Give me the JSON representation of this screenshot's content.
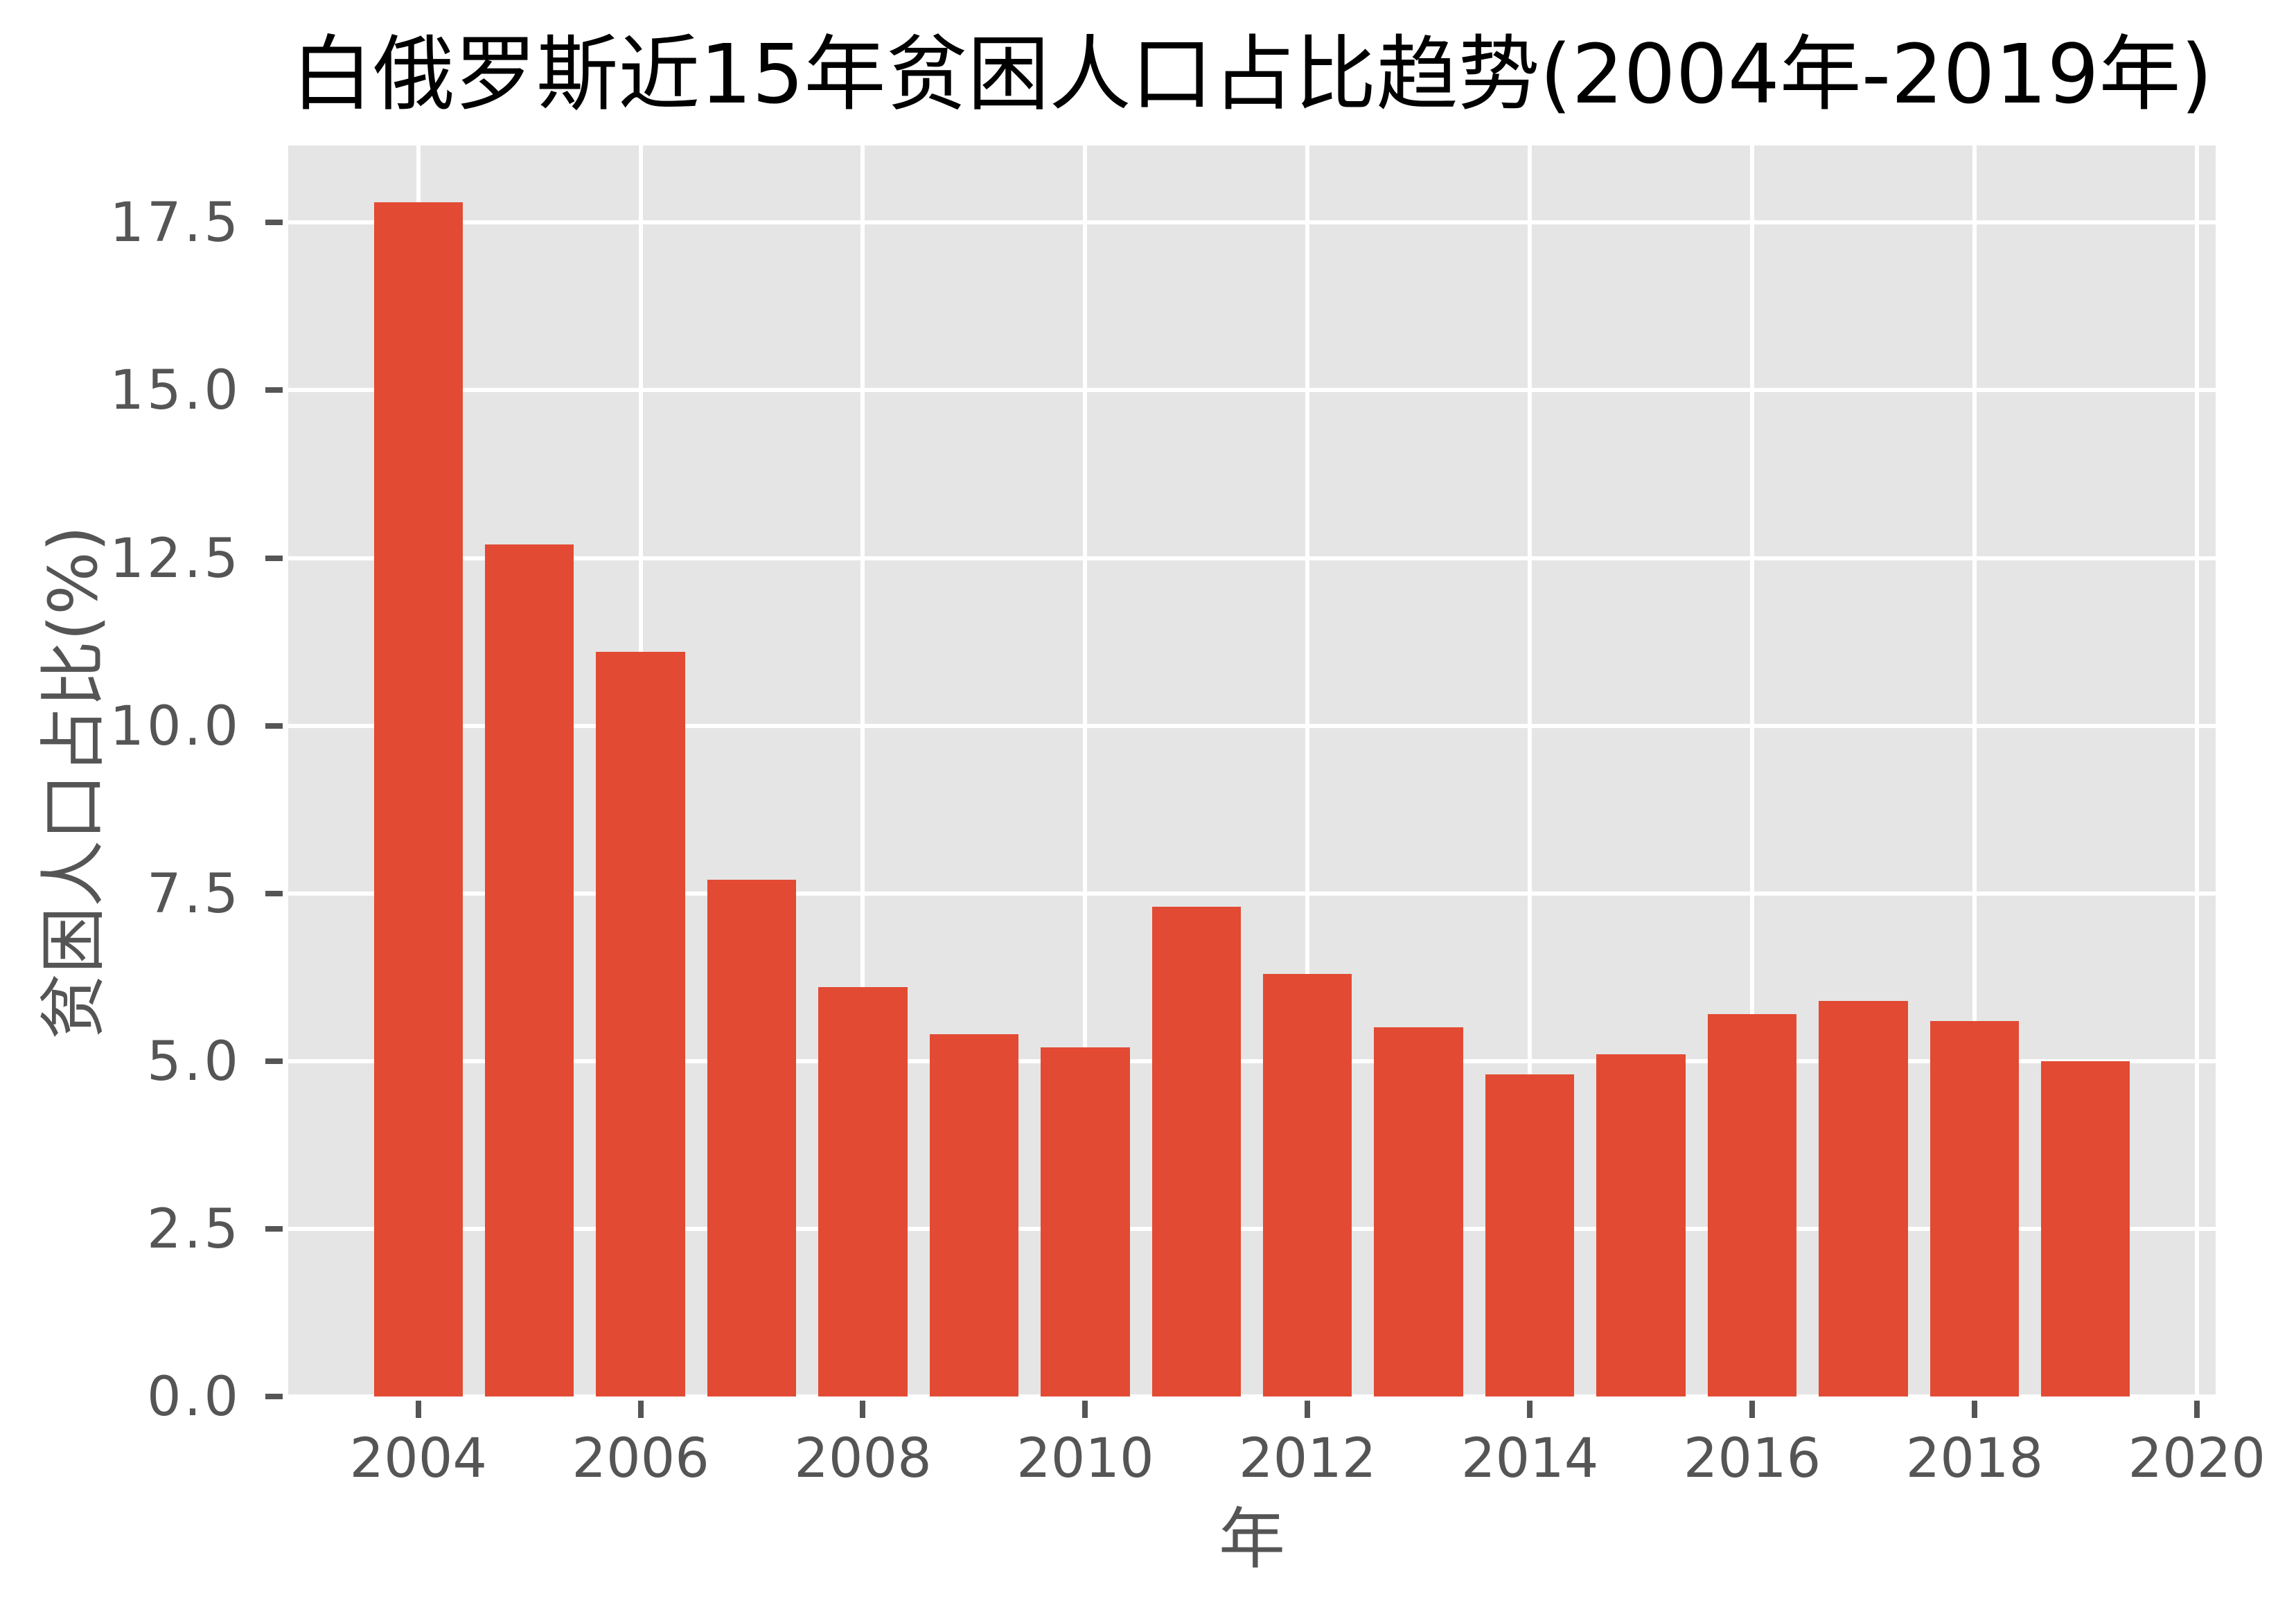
{
  "chart_data": {
    "type": "bar",
    "title": "白俄罗斯近15年贫困人口占比趋势(2004年-2019年)",
    "xlabel": "年",
    "ylabel": "贫困人口占比(%)",
    "categories": [
      "2004",
      "2005",
      "2006",
      "2007",
      "2008",
      "2009",
      "2010",
      "2011",
      "2012",
      "2013",
      "2014",
      "2015",
      "2016",
      "2017",
      "2018",
      "2019"
    ],
    "values": [
      17.8,
      12.7,
      11.1,
      7.7,
      6.1,
      5.4,
      5.2,
      7.3,
      6.3,
      5.5,
      4.8,
      5.1,
      5.7,
      5.9,
      5.6,
      5.0
    ],
    "bar_width": 0.8,
    "xlim": [
      2002.83,
      2020.17
    ],
    "ylim": [
      0,
      18.65
    ],
    "xticks": [
      2004,
      2006,
      2008,
      2010,
      2012,
      2014,
      2016,
      2018,
      2020
    ],
    "xtick_labels": [
      "2004",
      "2006",
      "2008",
      "2010",
      "2012",
      "2014",
      "2016",
      "2018",
      "2020"
    ],
    "yticks": [
      0,
      2.5,
      5,
      7.5,
      10,
      12.5,
      15,
      17.5
    ],
    "ytick_labels": [
      "0.0",
      "2.5",
      "5.0",
      "7.5",
      "10.0",
      "12.5",
      "15.0",
      "17.5"
    ],
    "grid": true,
    "legend": null
  },
  "colors": {
    "bar": "#E24A33",
    "plot_background": "#E5E5E5",
    "grid": "#FFFFFF",
    "tick": "#555555",
    "title": "#000000"
  }
}
